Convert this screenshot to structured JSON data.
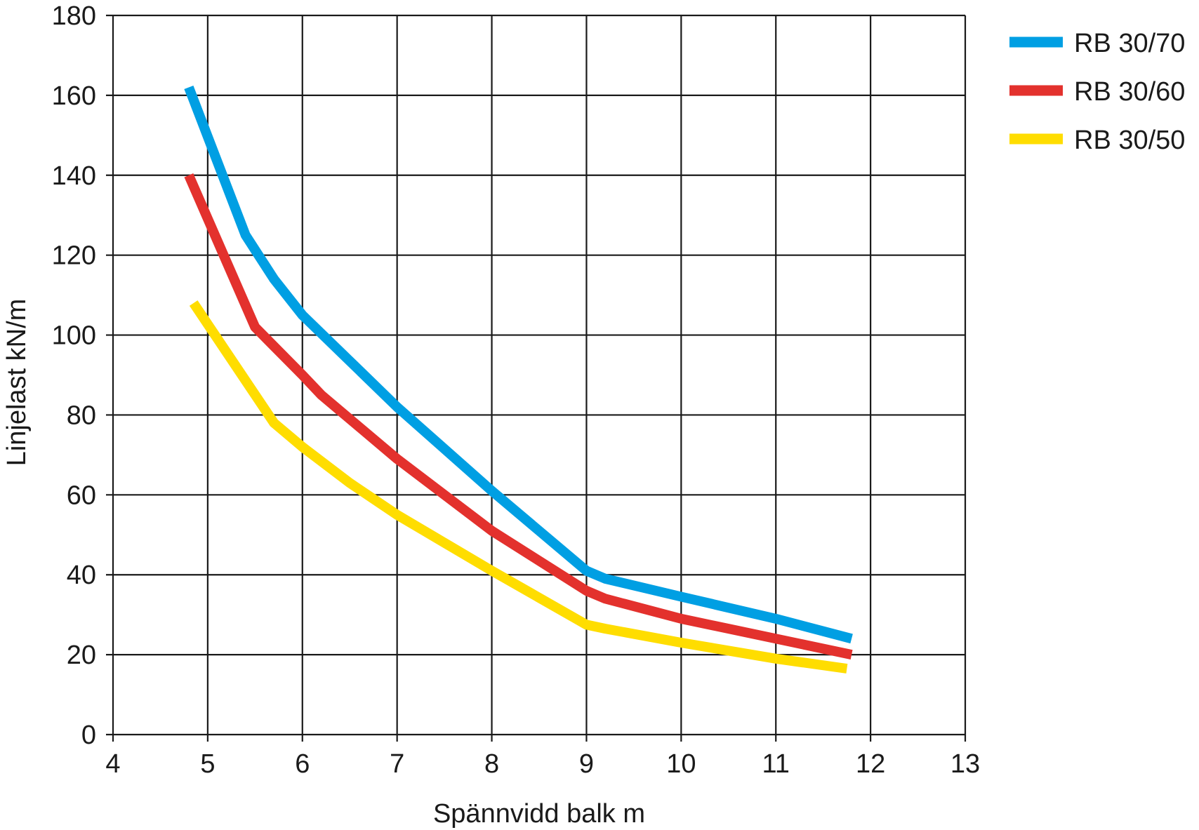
{
  "chart_data": {
    "type": "line",
    "title": "",
    "xlabel": "Spännvidd balk m",
    "ylabel": "Linjelast kN/m",
    "xlim": [
      4,
      13
    ],
    "ylim": [
      0,
      180
    ],
    "xticks": [
      4,
      5,
      6,
      7,
      8,
      9,
      10,
      11,
      12,
      13
    ],
    "yticks": [
      0,
      20,
      40,
      60,
      80,
      100,
      120,
      140,
      160,
      180
    ],
    "grid": true,
    "legend_position": "top-right",
    "series": [
      {
        "name": "RB 30/70",
        "color": "#009fe3",
        "x": [
          4.8,
          5.4,
          5.7,
          6.0,
          7.0,
          8.0,
          9.0,
          9.2,
          10.0,
          11.0,
          11.8
        ],
        "y": [
          162,
          125,
          114,
          105,
          82,
          61,
          41,
          39,
          34.5,
          29,
          24
        ]
      },
      {
        "name": "RB 30/60",
        "color": "#e3312d",
        "x": [
          4.8,
          5.5,
          6.0,
          6.2,
          7.0,
          8.0,
          9.0,
          9.2,
          10.0,
          11.0,
          11.8
        ],
        "y": [
          140,
          102,
          90,
          85,
          69,
          51,
          36,
          34,
          29,
          24,
          20
        ]
      },
      {
        "name": "RB 30/50",
        "color": "#ffdd00",
        "x": [
          4.85,
          5.7,
          6.0,
          6.5,
          7.0,
          8.0,
          9.0,
          9.2,
          10.0,
          11.0,
          11.75
        ],
        "y": [
          108,
          78,
          72,
          63,
          55,
          41,
          27.5,
          26.5,
          23,
          19,
          16.5
        ]
      }
    ]
  }
}
